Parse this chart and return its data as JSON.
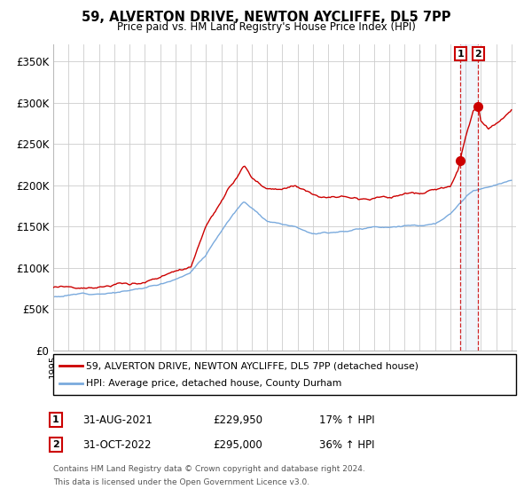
{
  "title": "59, ALVERTON DRIVE, NEWTON AYCLIFFE, DL5 7PP",
  "subtitle": "Price paid vs. HM Land Registry's House Price Index (HPI)",
  "legend_line1": "59, ALVERTON DRIVE, NEWTON AYCLIFFE, DL5 7PP (detached house)",
  "legend_line2": "HPI: Average price, detached house, County Durham",
  "note_line1": "Contains HM Land Registry data © Crown copyright and database right 2024.",
  "note_line2": "This data is licensed under the Open Government Licence v3.0.",
  "annotation1_label": "1",
  "annotation1_date": "31-AUG-2021",
  "annotation1_price": "£229,950",
  "annotation1_hpi": "17% ↑ HPI",
  "annotation2_label": "2",
  "annotation2_date": "31-OCT-2022",
  "annotation2_price": "£295,000",
  "annotation2_hpi": "36% ↑ HPI",
  "red_color": "#cc0000",
  "blue_color": "#7aaadd",
  "bg_color": "#ffffff",
  "grid_color": "#cccccc",
  "sale1_x": 2021.667,
  "sale1_y": 229950,
  "sale2_x": 2022.833,
  "sale2_y": 295000,
  "ylim": [
    0,
    370000
  ],
  "xlim": [
    1995,
    2025.3
  ],
  "yticks": [
    0,
    50000,
    100000,
    150000,
    200000,
    250000,
    300000,
    350000
  ],
  "ytick_labels": [
    "£0",
    "£50K",
    "£100K",
    "£150K",
    "£200K",
    "£250K",
    "£300K",
    "£350K"
  ],
  "hpi_base_x": [
    1995,
    1996,
    1997,
    1998,
    1999,
    2000,
    2001,
    2002,
    2003,
    2004,
    2005,
    2006,
    2007,
    2007.5,
    2008,
    2009,
    2010,
    2011,
    2012,
    2013,
    2014,
    2015,
    2016,
    2017,
    2018,
    2019,
    2020,
    2020.5,
    2021,
    2021.5,
    2022,
    2022.5,
    2023,
    2024,
    2025
  ],
  "hpi_base_y": [
    65000,
    67000,
    69000,
    71000,
    73000,
    75000,
    78000,
    83000,
    90000,
    100000,
    120000,
    150000,
    175000,
    185000,
    178000,
    163000,
    161000,
    158000,
    152000,
    153000,
    156000,
    158000,
    162000,
    163000,
    165000,
    165000,
    168000,
    172000,
    178000,
    188000,
    198000,
    205000,
    207000,
    210000,
    215000
  ],
  "red_base_x": [
    1995,
    1996,
    1997,
    1998,
    1999,
    2000,
    2001,
    2002,
    2003,
    2004,
    2005,
    2006,
    2007,
    2007.5,
    2008,
    2009,
    2010,
    2011,
    2012,
    2013,
    2014,
    2015,
    2016,
    2017,
    2018,
    2019,
    2020,
    2021,
    2021.5,
    2021.667,
    2021.75,
    2022,
    2022.5,
    2022.833,
    2023,
    2023.5,
    2024,
    2025
  ],
  "red_base_y": [
    76000,
    78000,
    79000,
    80000,
    81000,
    82000,
    85000,
    91000,
    98000,
    105000,
    155000,
    185000,
    210000,
    225000,
    210000,
    195000,
    193000,
    198000,
    190000,
    186000,
    186000,
    186000,
    190000,
    192000,
    194000,
    194000,
    196000,
    200000,
    218000,
    229950,
    240000,
    258000,
    290000,
    295000,
    278000,
    270000,
    276000,
    290000
  ]
}
